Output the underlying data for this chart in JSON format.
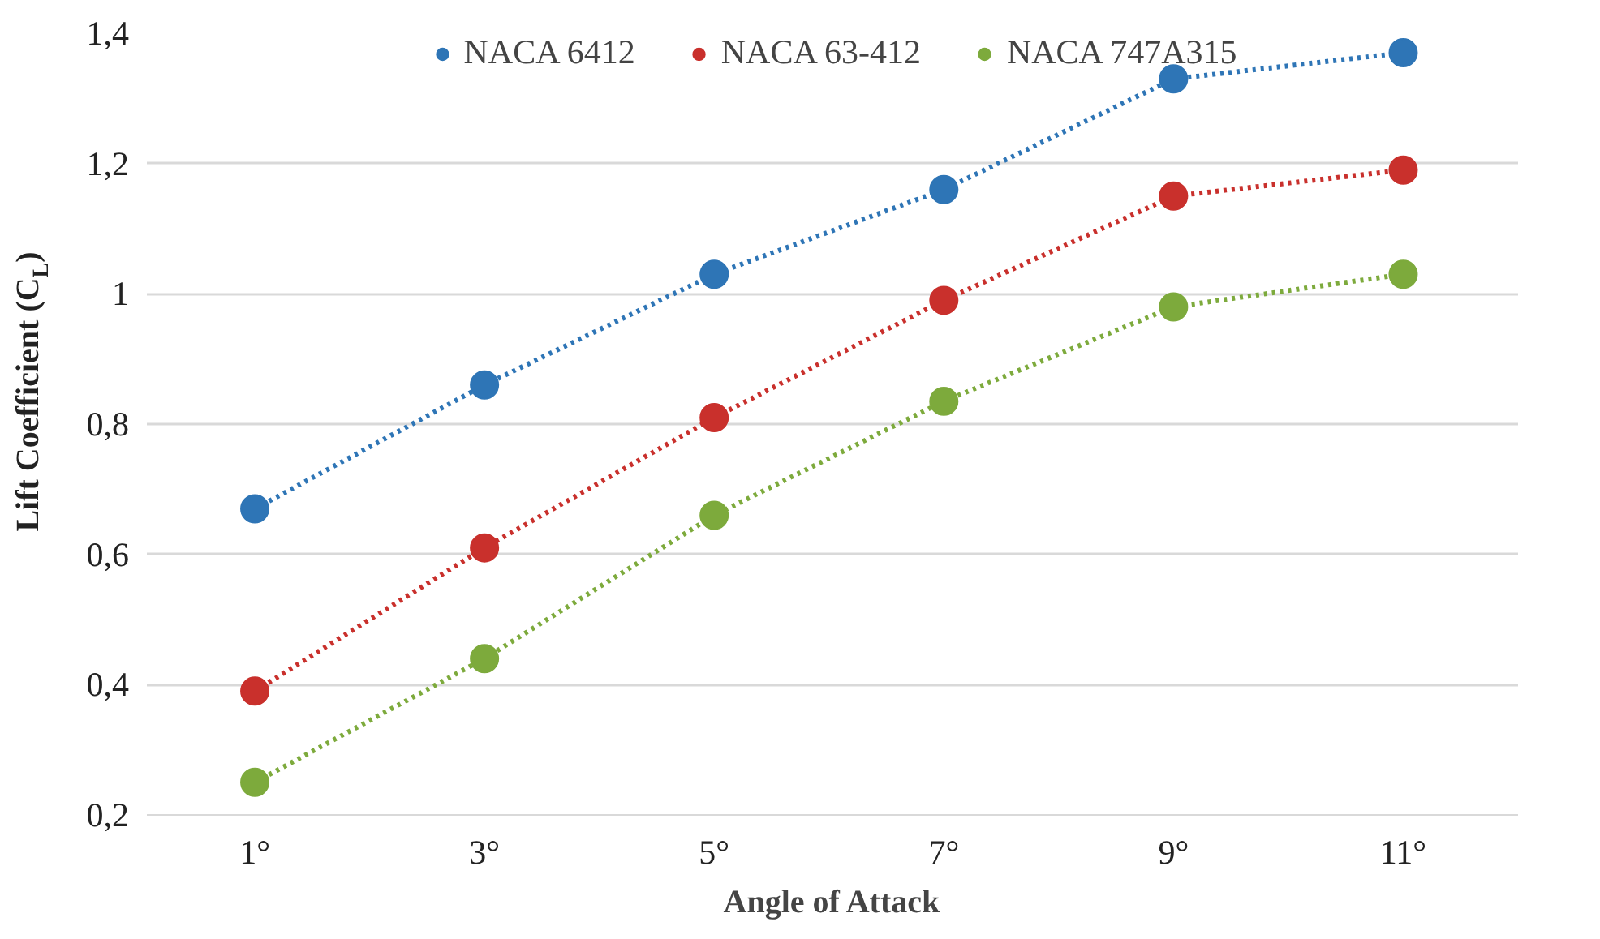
{
  "chart_data": {
    "type": "line",
    "xlabel": "Angle of Attack",
    "ylabel": "Lift Coefficient (C$_{L}$)",
    "categories": [
      "1°",
      "3°",
      "5°",
      "7°",
      "9°",
      "11°"
    ],
    "series": [
      {
        "name": "NACA 6412",
        "color": "#2e75b6",
        "values": [
          0.67,
          0.86,
          1.03,
          1.16,
          1.33,
          1.37
        ]
      },
      {
        "name": "NACA 63-412",
        "color": "#c9302c",
        "values": [
          0.39,
          0.61,
          0.81,
          0.99,
          1.15,
          1.19
        ]
      },
      {
        "name": "NACA 747A315",
        "color": "#7daa3c",
        "values": [
          0.25,
          0.44,
          0.66,
          0.835,
          0.98,
          1.03
        ]
      }
    ],
    "ylim": [
      0.2,
      1.4
    ],
    "yticks": [
      {
        "value": 0.2,
        "label": "0,2"
      },
      {
        "value": 0.4,
        "label": "0,4"
      },
      {
        "value": 0.6,
        "label": "0,6"
      },
      {
        "value": 0.8,
        "label": "0,8"
      },
      1,
      {
        "value": 1.2,
        "label": "1,2"
      },
      {
        "value": 1.4,
        "label": "1,4"
      }
    ],
    "grid": "y",
    "legend": "top",
    "marker": "circle",
    "line_style": "dotted"
  }
}
